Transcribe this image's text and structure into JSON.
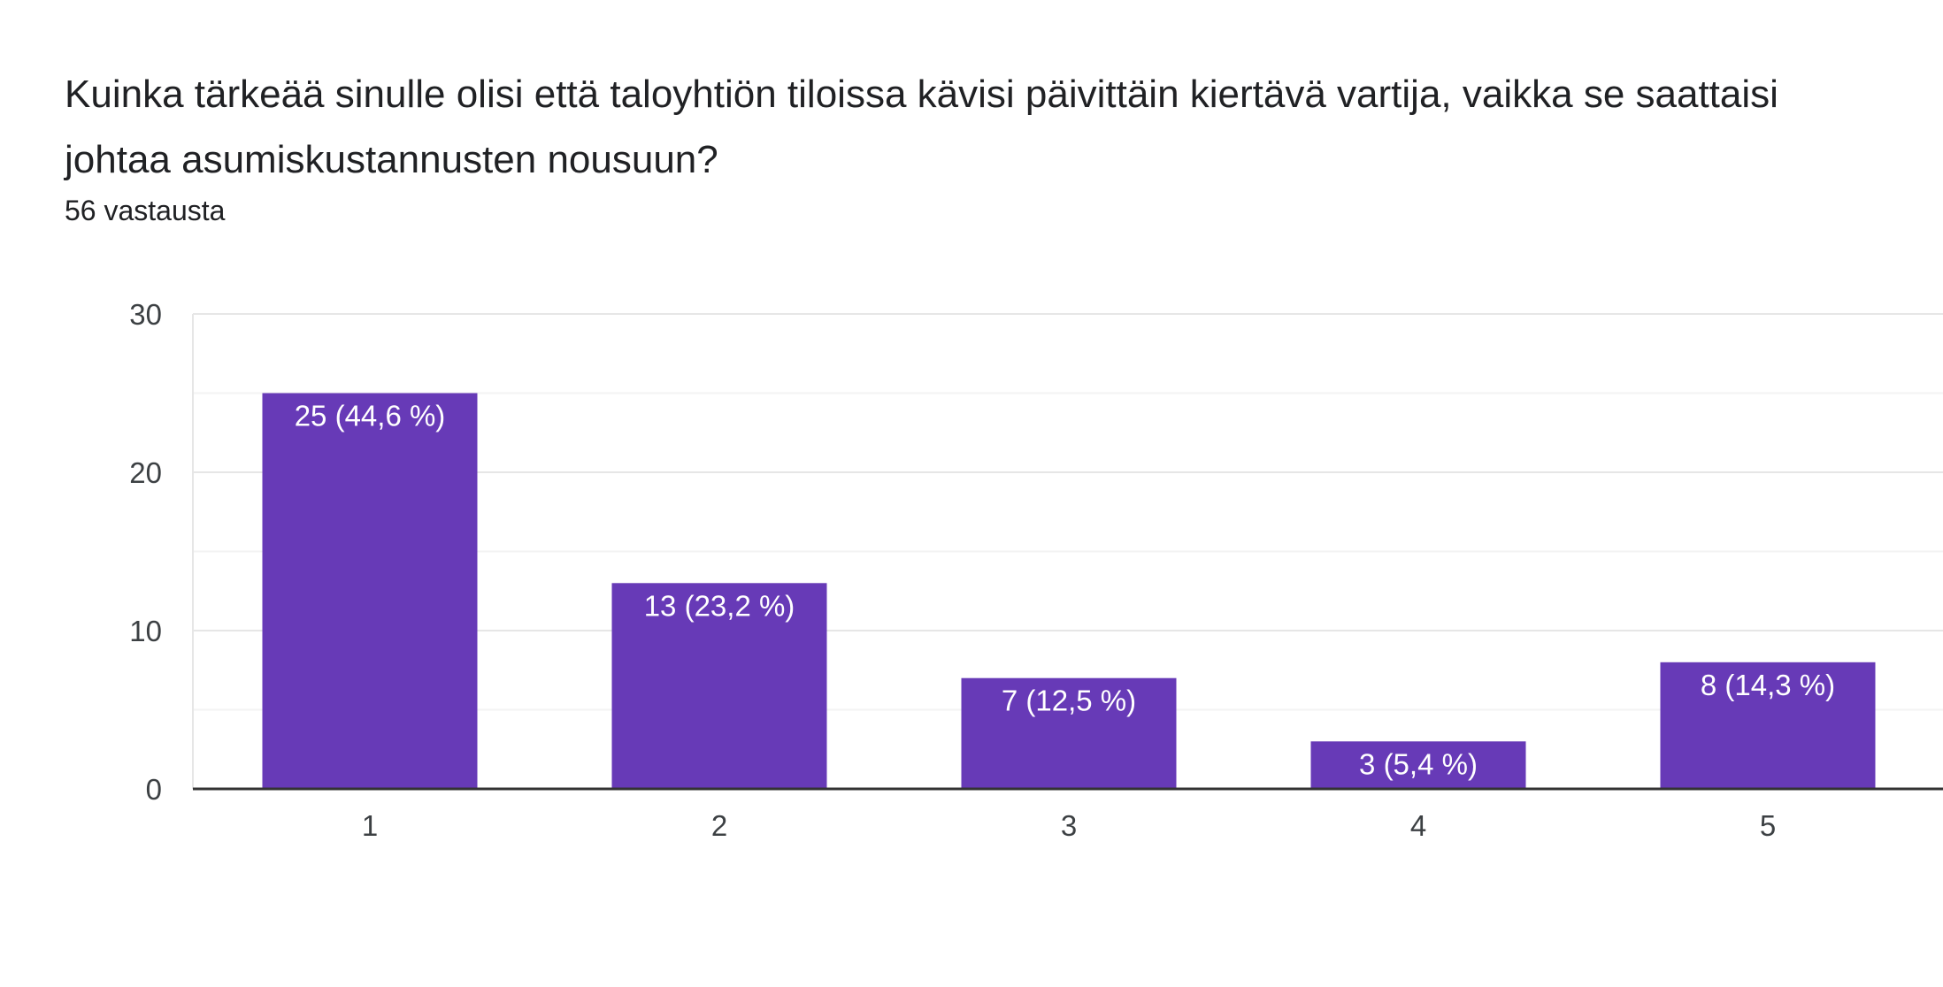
{
  "question": {
    "title": "Kuinka tärkeää sinulle olisi että taloyhtiön tiloissa kävisi päivittäin kiertävä vartija, vaikka se saattaisi johtaa asumiskustannusten nousuun?",
    "response_count": "56 vastausta"
  },
  "colors": {
    "bar": "#673ab7",
    "gridline": "#e6e6e6",
    "minor_gridline": "#f3f3f3",
    "baseline": "#333333"
  },
  "chart_data": {
    "type": "bar",
    "categories": [
      "1",
      "2",
      "3",
      "4",
      "5"
    ],
    "values": [
      25,
      13,
      7,
      3,
      8
    ],
    "data_labels": [
      "25 (44,6 %)",
      "13 (23,2 %)",
      "7 (12,5 %)",
      "3 (5,4 %)",
      "8 (14,3 %)"
    ],
    "yticks": [
      "0",
      "10",
      "20",
      "30"
    ],
    "ylim": [
      0,
      30
    ],
    "xlabel": "",
    "ylabel": "",
    "grid": true,
    "legend": "none"
  }
}
